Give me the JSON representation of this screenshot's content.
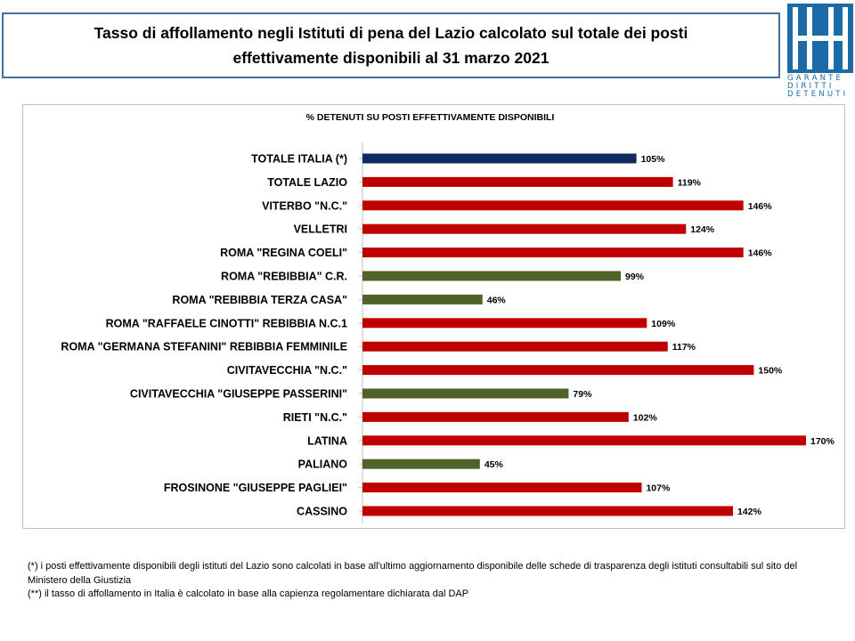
{
  "header": {
    "title_line1": "Tasso di affollamento negli Istituti di pena del Lazio calcolato sul totale dei posti",
    "title_line2": "effettivamente disponibili al 31 marzo 2021"
  },
  "logo": {
    "line1": "GARANTE",
    "line2": "DIRITTI",
    "line3": "DETENUTI",
    "color": "#1c6aa6"
  },
  "chart_data": {
    "type": "bar",
    "orientation": "horizontal",
    "subtitle": "% DETENUTI SU POSTI EFFETTIVAMENTE DISPONIBILI",
    "xlim": [
      0,
      200
    ],
    "grid": false,
    "legend": "none",
    "categories": [
      "TOTALE ITALIA (*)",
      "TOTALE LAZIO",
      "VITERBO \"N.C.\"",
      "VELLETRI",
      "ROMA \"REGINA COELI\"",
      "ROMA \"REBIBBIA\" C.R.",
      "ROMA \"REBIBBIA TERZA CASA\"",
      "ROMA \"RAFFAELE CINOTTI\" REBIBBIA N.C.1",
      "ROMA \"GERMANA STEFANINI\" REBIBBIA FEMMINILE",
      "CIVITAVECCHIA \"N.C.\"",
      "CIVITAVECCHIA \"GIUSEPPE PASSERINI\"",
      "RIETI \"N.C.\"",
      "LATINA",
      "PALIANO",
      "FROSINONE \"GIUSEPPE PAGLIEI\"",
      "CASSINO"
    ],
    "values": [
      105,
      119,
      146,
      124,
      146,
      99,
      46,
      109,
      117,
      150,
      79,
      102,
      170,
      45,
      107,
      142
    ],
    "value_suffix": "%",
    "bar_colors": [
      "#0f2a5c",
      "#c00000",
      "#c00000",
      "#c00000",
      "#c00000",
      "#4f6228",
      "#4f6228",
      "#c00000",
      "#c00000",
      "#c00000",
      "#4f6228",
      "#c00000",
      "#c00000",
      "#4f6228",
      "#c00000",
      "#c00000"
    ]
  },
  "notes": {
    "note1": "(*) i posti effettivamente disponibili  degli istituti del Lazio sono  calcolati in base all'ultimo aggiornamento disponibile  delle schede  di trasparenza degli istituti consultabili  sul sito del Ministero della Giustizia",
    "note2": "(**) il tasso di affollamento  in Italia è calcolato in base alla capienza regolamentare dichiarata dal DAP"
  }
}
